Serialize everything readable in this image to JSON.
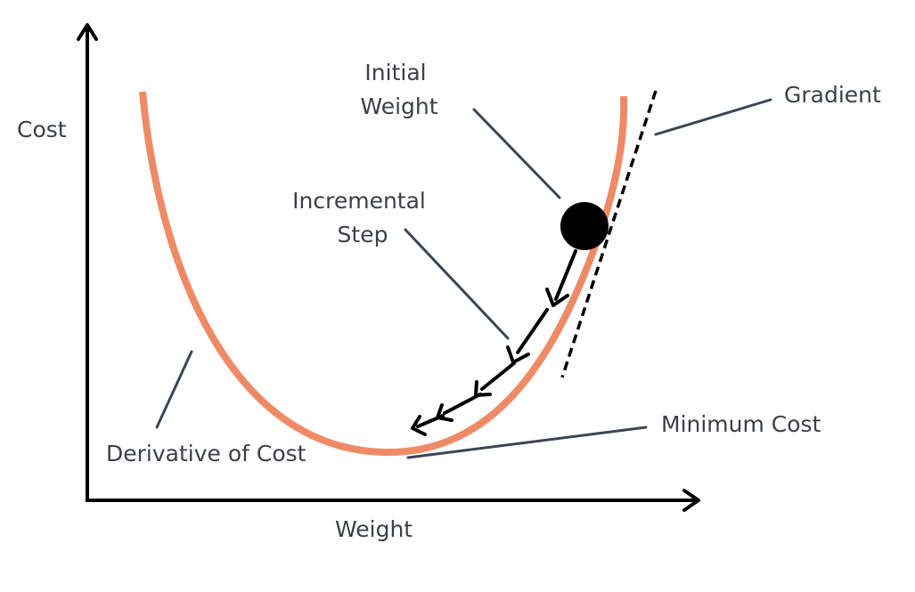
{
  "axes": {
    "y_label": "Cost",
    "x_label": "Weight"
  },
  "annotations": {
    "initial_weight": [
      "Initial",
      "Weight"
    ],
    "incremental_step": [
      "Incremental",
      "Step"
    ],
    "gradient": "Gradient",
    "minimum_cost": "Minimum Cost",
    "derivative_of_cost": "Derivative of Cost"
  },
  "colors": {
    "curve": "#ef8a67",
    "text": "#3a3f4a",
    "leader": "#3a4556",
    "ink": "#000000"
  }
}
